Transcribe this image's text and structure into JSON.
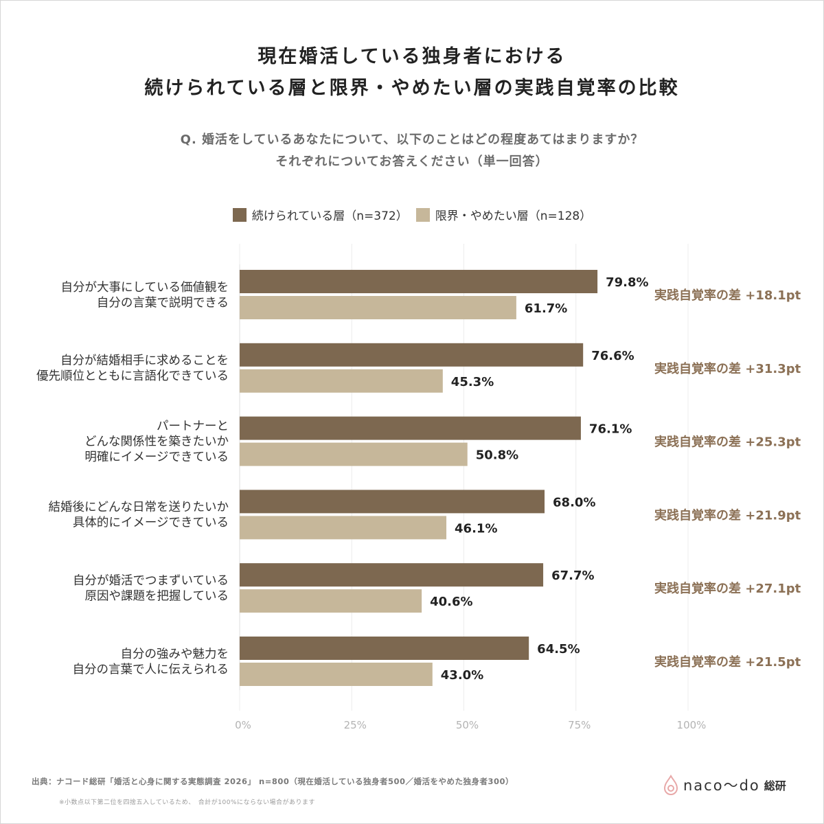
{
  "header": {
    "title_line1": "現在婚活している独身者における",
    "title_line2": "続けられている層と限界・やめたい層の実践自覚率の比較",
    "question_line1": "Q. 婚活をしているあなたについて、以下のことはどの程度あてはまりますか？",
    "question_line2": "それぞれについてお答えください（単一回答）"
  },
  "colors": {
    "series1": "#7d6850",
    "series2": "#c6b79a",
    "diff": "#8b7055",
    "axis_text": "#b3b3b3",
    "grid": "#ececec"
  },
  "chart_data": {
    "type": "bar",
    "orientation": "horizontal",
    "xlim": [
      0,
      100
    ],
    "ticks": [
      "0%",
      "25%",
      "50%",
      "75%",
      "100%"
    ],
    "legend_position": "top-center",
    "grid": true,
    "categories": [
      [
        "自分が大事にしている価値観を",
        "自分の言葉で説明できる"
      ],
      [
        "自分が結婚相手に求めることを",
        "優先順位とともに言語化できている"
      ],
      [
        "パートナーと",
        "どんな関係性を築きたいか",
        "明確にイメージできている"
      ],
      [
        "結婚後にどんな日常を送りたいか",
        "具体的にイメージできている"
      ],
      [
        "自分が婚活でつまずいている",
        "原因や課題を把握している"
      ],
      [
        "自分の強みや魅力を",
        "自分の言葉で人に伝えられる"
      ]
    ],
    "series": [
      {
        "name": "続けられている層（n=372）",
        "values": [
          79.8,
          76.6,
          76.1,
          68.0,
          67.7,
          64.5
        ],
        "labels": [
          "79.8%",
          "76.6%",
          "76.1%",
          "68.0%",
          "67.7%",
          "64.5%"
        ]
      },
      {
        "name": "限界・やめたい層（n=128）",
        "values": [
          61.7,
          45.3,
          50.8,
          46.1,
          40.6,
          43.0
        ],
        "labels": [
          "61.7%",
          "45.3%",
          "50.8%",
          "46.1%",
          "40.6%",
          "43.0%"
        ]
      }
    ],
    "diff_labels": [
      "実践自覚率の差 +18.1pt",
      "実践自覚率の差  +31.3pt",
      "実践自覚率の差  +25.3pt",
      "実践自覚率の差  +21.9pt",
      "実践自覚率の差  +27.1pt",
      "実践自覚率の差  +21.5pt"
    ]
  },
  "footer": {
    "source": "出典：ナコード総研「婚活と心身に関する実態調査 2026」 n=800（現在婚活している独身者500／婚活をやめた独身者300）",
    "note": "※小数点以下第二位を四捨五入しているため、　合計が100%にならない場合があります",
    "logo_text": "naco〜do",
    "logo_tag": "総研"
  }
}
